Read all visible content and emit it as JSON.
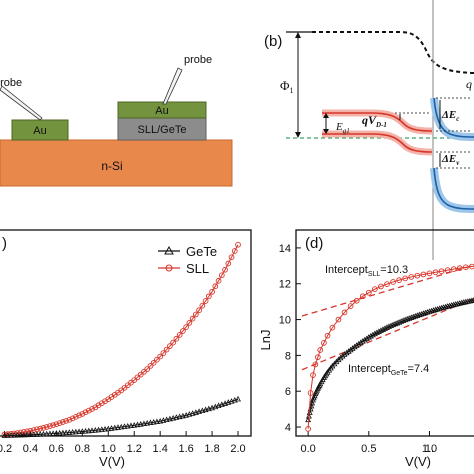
{
  "panel_a": {
    "probe_label_left": "probe",
    "probe_label_right": "probe",
    "left_pad_label": "Au",
    "right_top_label": "Au",
    "right_mid_label": "SLL/GeTe",
    "substrate_label": "n-Si",
    "colors": {
      "au": "#74933e",
      "sll": "#8c8c8c",
      "si": "#e8884a",
      "si_edge": "#c96a2c"
    }
  },
  "panel_b": {
    "label": "(b)",
    "phi_label": "Φ",
    "phi_sub": "1",
    "egi_label": "E",
    "egi_sub": "g1",
    "qv_label": "qV",
    "qv_sub": "D-1",
    "dec_label": "ΔE",
    "dec_sub": "c",
    "dev_label": "ΔE",
    "dev_sub": "v",
    "right_edge_label": "q",
    "colors": {
      "red": "#d8352a",
      "blue": "#1f5fa6",
      "green": "#3aa86b"
    }
  },
  "panel_c": {
    "label": ")",
    "xlabel": "V(V)",
    "xticks": [
      "0.2",
      "0.4",
      "0.6",
      "0.8",
      "1.0",
      "1.2",
      "1.4",
      "1.6",
      "1.8",
      "2.0"
    ],
    "legend": [
      "GeTe",
      "SLL"
    ]
  },
  "panel_d": {
    "label": "(d)",
    "xlabel": "V(V)",
    "ylabel": "LnJ",
    "xticks": [
      "0.0",
      "0.5",
      "1.0",
      "1."
    ],
    "yticks": [
      "4",
      "6",
      "8",
      "10",
      "12",
      "14"
    ],
    "intercept_sll_prefix": "Intercept",
    "intercept_sll_sub": "SLL",
    "intercept_sll_value": "=10.3",
    "intercept_gete_prefix": "Intercept",
    "intercept_gete_sub": "GeTe",
    "intercept_gete_value": "=7.4"
  },
  "chart_data": [
    {
      "type": "scatter",
      "xlabel": "V(V)",
      "ylabel": "",
      "xlim": [
        0.15,
        2.1
      ],
      "ylim": [
        0,
        14
      ],
      "series": [
        {
          "name": "SLL",
          "x": [
            0.2,
            0.3,
            0.4,
            0.5,
            0.6,
            0.7,
            0.8,
            0.9,
            1.0,
            1.1,
            1.2,
            1.3,
            1.4,
            1.5,
            1.6,
            1.7,
            1.8,
            1.9,
            2.0
          ],
          "y": [
            0.1,
            0.2,
            0.35,
            0.55,
            0.8,
            1.1,
            1.5,
            1.95,
            2.5,
            3.1,
            3.8,
            4.55,
            5.4,
            6.35,
            7.4,
            8.55,
            9.8,
            11.3,
            13.0
          ]
        },
        {
          "name": "GeTe",
          "x": [
            0.2,
            0.3,
            0.4,
            0.5,
            0.6,
            0.7,
            0.8,
            0.9,
            1.0,
            1.1,
            1.2,
            1.3,
            1.4,
            1.5,
            1.6,
            1.7,
            1.8,
            1.9,
            2.0
          ],
          "y": [
            0.02,
            0.05,
            0.08,
            0.12,
            0.17,
            0.23,
            0.3,
            0.38,
            0.48,
            0.6,
            0.72,
            0.86,
            1.0,
            1.2,
            1.4,
            1.65,
            1.9,
            2.2,
            2.5
          ]
        }
      ]
    },
    {
      "type": "scatter",
      "xlabel": "V(V)",
      "ylabel": "LnJ",
      "xlim": [
        -0.1,
        1.4
      ],
      "ylim": [
        3.5,
        15
      ],
      "series": [
        {
          "name": "SLL",
          "x": [
            0.0,
            0.02,
            0.04,
            0.06,
            0.08,
            0.1,
            0.13,
            0.16,
            0.2,
            0.25,
            0.3,
            0.35,
            0.4,
            0.45,
            0.5,
            0.55,
            0.6,
            0.65,
            0.7,
            0.75,
            0.8,
            0.85,
            0.9,
            0.95,
            1.0,
            1.05,
            1.1,
            1.15,
            1.2,
            1.25,
            1.3,
            1.35,
            1.4
          ],
          "y": [
            3.9,
            5.9,
            6.9,
            7.5,
            7.9,
            8.3,
            8.7,
            9.1,
            9.55,
            10.0,
            10.4,
            10.75,
            11.05,
            11.3,
            11.5,
            11.7,
            11.85,
            11.98,
            12.1,
            12.2,
            12.3,
            12.38,
            12.45,
            12.52,
            12.58,
            12.64,
            12.7,
            12.76,
            12.82,
            12.87,
            12.92,
            12.96,
            13.0
          ]
        },
        {
          "name": "GeTe",
          "x": [
            0.0,
            0.02,
            0.04,
            0.06,
            0.08,
            0.1,
            0.13,
            0.16,
            0.2,
            0.25,
            0.3,
            0.35,
            0.4,
            0.45,
            0.5,
            0.55,
            0.6,
            0.65,
            0.7,
            0.75,
            0.8,
            0.85,
            0.9,
            0.95,
            1.0,
            1.05,
            1.1,
            1.15,
            1.2,
            1.25,
            1.3,
            1.35,
            1.4
          ],
          "y": [
            4.4,
            5.0,
            5.5,
            5.85,
            6.15,
            6.4,
            6.75,
            7.05,
            7.4,
            7.75,
            8.05,
            8.3,
            8.55,
            8.78,
            9.0,
            9.2,
            9.38,
            9.55,
            9.7,
            9.84,
            9.98,
            10.1,
            10.22,
            10.33,
            10.44,
            10.54,
            10.64,
            10.73,
            10.82,
            10.9,
            10.98,
            11.05,
            11.12
          ]
        },
        {
          "name": "",
          "x": [
            -0.05,
            1.45
          ],
          "y": [
            10.2,
            13.2
          ]
        },
        {
          "name": "",
          "x": [
            -0.05,
            1.45
          ],
          "y": [
            7.2,
            11.4
          ]
        }
      ]
    }
  ]
}
